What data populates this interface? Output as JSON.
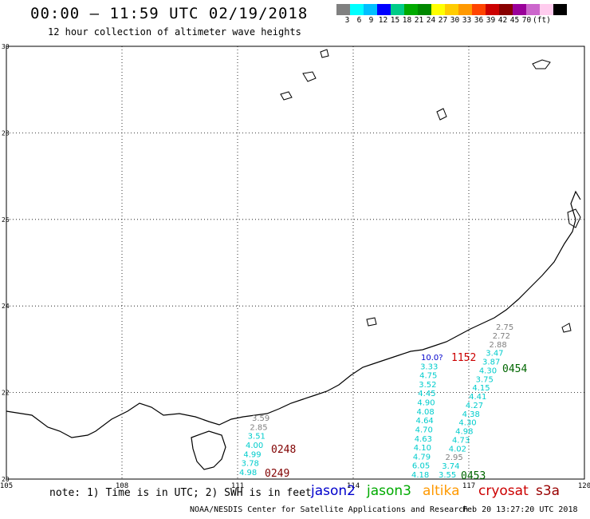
{
  "header": {
    "title": "00:00 – 11:59 UTC 02/19/2018",
    "subtitle": "12 hour collection of altimeter wave heights"
  },
  "legend": {
    "colors": [
      "#808080",
      "#00ffff",
      "#00bfff",
      "#0000ff",
      "#00cc88",
      "#00aa00",
      "#008800",
      "#ffff00",
      "#ffcc00",
      "#ff9900",
      "#ff4400",
      "#cc0000",
      "#880000",
      "#990099",
      "#cc66cc",
      "#ffccee",
      "#000000"
    ],
    "labels": [
      "3",
      "6",
      "9",
      "12",
      "15",
      "18",
      "21",
      "24",
      "27",
      "30",
      "33",
      "36",
      "39",
      "42",
      "45",
      "70"
    ],
    "unit": "(ft)"
  },
  "map": {
    "lat_labels": [
      "30",
      "28",
      "26",
      "24",
      "22",
      "20"
    ],
    "lon_labels": [
      "105",
      "108",
      "111",
      "114",
      "117",
      "120"
    ],
    "lat_range": [
      20,
      30
    ],
    "lon_range": [
      105,
      120
    ],
    "grid": true
  },
  "tracks": [
    {
      "time_label": "0248",
      "time_label2": "0249",
      "label_color": "#800000",
      "points": [
        {
          "v": "3.59",
          "c": "#808080"
        },
        {
          "v": "2.85",
          "c": "#808080"
        },
        {
          "v": "3.51",
          "c": "#00cccc"
        },
        {
          "v": "4.00",
          "c": "#00cccc"
        },
        {
          "v": "4.99",
          "c": "#00cccc"
        },
        {
          "v": "3.78",
          "c": "#00cccc"
        },
        {
          "v": "4.98",
          "c": "#00cccc"
        }
      ]
    },
    {
      "time_label": "0453",
      "label_color": "#006600",
      "points": [
        {
          "v": "10.0?",
          "c": "#0000cc"
        },
        {
          "v": "3.33",
          "c": "#00cccc"
        },
        {
          "v": "4.75",
          "c": "#00cccc"
        },
        {
          "v": "3.52",
          "c": "#00cccc"
        },
        {
          "v": "4.45",
          "c": "#00cccc"
        },
        {
          "v": "4.90",
          "c": "#00cccc"
        },
        {
          "v": "4.08",
          "c": "#00cccc"
        },
        {
          "v": "4.64",
          "c": "#00cccc"
        },
        {
          "v": "4.70",
          "c": "#00cccc"
        },
        {
          "v": "4.63",
          "c": "#00cccc"
        },
        {
          "v": "4.10",
          "c": "#00cccc"
        },
        {
          "v": "4.79",
          "c": "#00cccc"
        },
        {
          "v": "6.05",
          "c": "#00cccc"
        },
        {
          "v": "4.18",
          "c": "#00cccc"
        }
      ]
    },
    {
      "time_label": "0454",
      "time_label_top": "1152",
      "label_color": "#006600",
      "points": [
        {
          "v": "2.75",
          "c": "#808080"
        },
        {
          "v": "2.72",
          "c": "#808080"
        },
        {
          "v": "2.88",
          "c": "#808080"
        },
        {
          "v": "3.47",
          "c": "#00cccc"
        },
        {
          "v": "3.87",
          "c": "#00cccc"
        },
        {
          "v": "4.30",
          "c": "#00cccc"
        },
        {
          "v": "3.75",
          "c": "#00cccc"
        },
        {
          "v": "4.15",
          "c": "#00cccc"
        },
        {
          "v": "4.41",
          "c": "#00cccc"
        },
        {
          "v": "4.27",
          "c": "#00cccc"
        },
        {
          "v": "4.38",
          "c": "#00cccc"
        },
        {
          "v": "4.30",
          "c": "#00cccc"
        },
        {
          "v": "4.98",
          "c": "#00cccc"
        },
        {
          "v": "4.73",
          "c": "#00cccc"
        },
        {
          "v": "4.02",
          "c": "#00cccc"
        },
        {
          "v": "2.95",
          "c": "#808080"
        },
        {
          "v": "3.74",
          "c": "#00cccc"
        },
        {
          "v": "3.55",
          "c": "#00cccc"
        }
      ]
    }
  ],
  "footer": {
    "note": "note: 1) Time is in UTC; 2) SWH is in feet",
    "satellites": [
      {
        "name": "jason2",
        "color": "#0000cc"
      },
      {
        "name": "jason3",
        "color": "#00aa00"
      },
      {
        "name": "altika",
        "color": "#ff9900"
      },
      {
        "name": "cryosat",
        "color": "#cc0000"
      },
      {
        "name": "s3a",
        "color": "#990000"
      }
    ],
    "credit": "NOAA/NESDIS Center for Satellite Applications and Research",
    "timestamp": "Feb 20 13:27:20 UTC 2018"
  }
}
